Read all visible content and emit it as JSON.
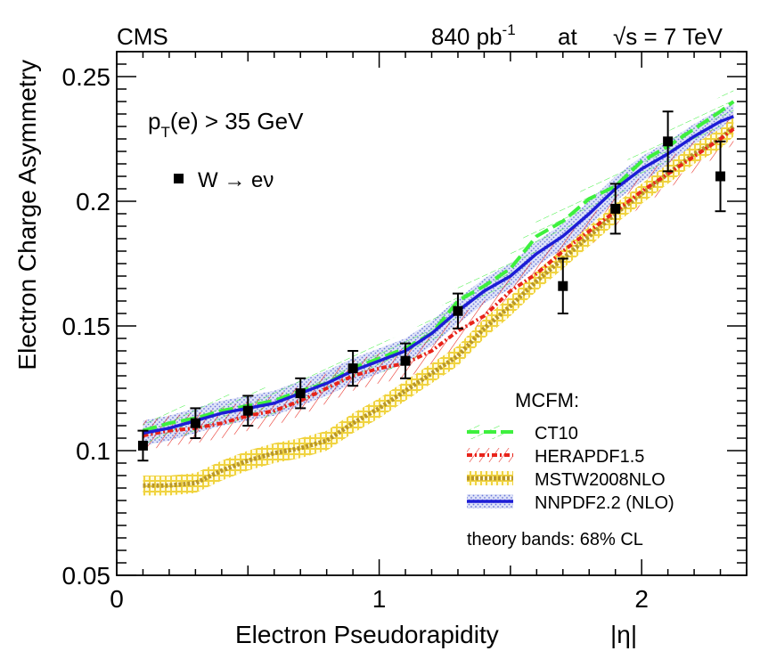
{
  "header": {
    "experiment": "CMS",
    "luminosity": "840 pb",
    "luminosity_exp": "-1",
    "at": "at",
    "energy_symbol": "√s",
    "energy_value": " = 7 TeV"
  },
  "annotations": {
    "cut_p": "p",
    "cut_sub": "T",
    "cut_rest": "(e) > 35 GeV"
  },
  "legend": {
    "data_label": "W → eν",
    "header": "MCFM:",
    "entries": [
      "CT10",
      "HERAPDF1.5",
      "MSTW2008NLO",
      "NNPDF2.2 (NLO)"
    ],
    "footer": "theory bands: 68% CL"
  },
  "colors": {
    "ct10": "#3ef03e",
    "herapdf": "#e8231a",
    "mstw": "#b8962a",
    "mstw_band": "#f3dc4a",
    "nnpdf": "#1d1dd6",
    "nnpdf_band": "#9aa6e8"
  },
  "chart_data": {
    "type": "line",
    "xlabel": "Electron Pseudorapidity",
    "xlabel_symbol": "|η|",
    "ylabel": "Electron Charge Asymmetry",
    "xlim": [
      0,
      2.4
    ],
    "ylim": [
      0.05,
      0.26
    ],
    "x_ticks": [
      "0",
      "1",
      "2"
    ],
    "y_ticks": [
      "0.05",
      "0.1",
      "0.15",
      "0.2",
      "0.25"
    ],
    "data": {
      "name": "W → eν",
      "x": [
        0.1,
        0.3,
        0.5,
        0.7,
        0.9,
        1.1,
        1.3,
        1.7,
        1.9,
        2.1,
        2.3
      ],
      "y": [
        0.102,
        0.111,
        0.116,
        0.123,
        0.133,
        0.136,
        0.156,
        0.166,
        0.197,
        0.224,
        0.21
      ],
      "err": [
        0.006,
        0.006,
        0.006,
        0.006,
        0.007,
        0.007,
        0.007,
        0.011,
        0.01,
        0.012,
        0.014
      ]
    },
    "theory_x": [
      0.1,
      0.2,
      0.3,
      0.4,
      0.5,
      0.6,
      0.7,
      0.8,
      0.9,
      1.0,
      1.1,
      1.2,
      1.3,
      1.4,
      1.5,
      1.6,
      1.7,
      1.8,
      1.9,
      2.0,
      2.1,
      2.2,
      2.3,
      2.35
    ],
    "series": [
      {
        "name": "CT10",
        "values": [
          0.108,
          0.111,
          0.113,
          0.116,
          0.118,
          0.12,
          0.124,
          0.127,
          0.133,
          0.137,
          0.141,
          0.147,
          0.16,
          0.166,
          0.173,
          0.186,
          0.192,
          0.201,
          0.206,
          0.216,
          0.222,
          0.229,
          0.236,
          0.24
        ],
        "err": 0.006
      },
      {
        "name": "HERAPDF1.5",
        "values": [
          0.106,
          0.108,
          0.109,
          0.111,
          0.114,
          0.116,
          0.12,
          0.125,
          0.13,
          0.133,
          0.135,
          0.14,
          0.148,
          0.154,
          0.164,
          0.171,
          0.18,
          0.188,
          0.196,
          0.204,
          0.211,
          0.218,
          0.225,
          0.229
        ],
        "err": 0.006
      },
      {
        "name": "MSTW2008NLO",
        "values": [
          0.086,
          0.086,
          0.087,
          0.092,
          0.096,
          0.099,
          0.101,
          0.104,
          0.111,
          0.117,
          0.124,
          0.131,
          0.138,
          0.149,
          0.158,
          0.168,
          0.177,
          0.186,
          0.195,
          0.203,
          0.211,
          0.219,
          0.225,
          0.23
        ],
        "err": 0.004
      },
      {
        "name": "NNPDF2.2 (NLO)",
        "values": [
          0.107,
          0.109,
          0.112,
          0.115,
          0.117,
          0.119,
          0.123,
          0.127,
          0.132,
          0.136,
          0.14,
          0.147,
          0.156,
          0.164,
          0.17,
          0.179,
          0.186,
          0.195,
          0.205,
          0.213,
          0.219,
          0.226,
          0.232,
          0.234
        ],
        "err": 0.005
      }
    ]
  }
}
